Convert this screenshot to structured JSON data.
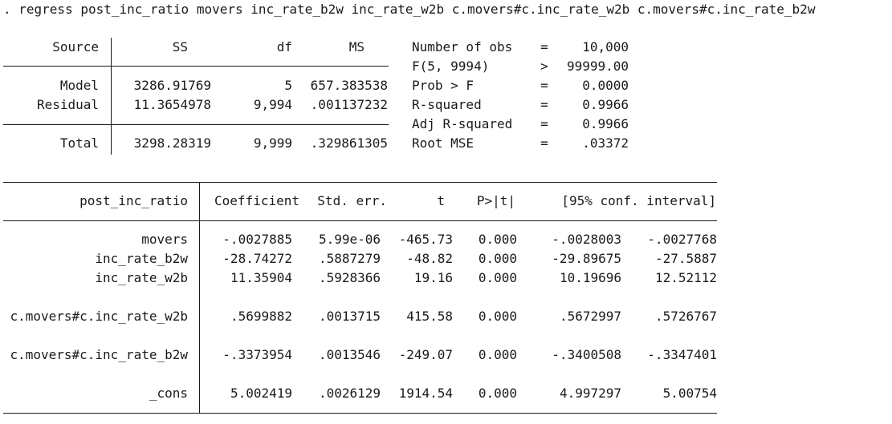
{
  "command": ". regress post_inc_ratio movers inc_rate_b2w inc_rate_w2b c.movers#c.inc_rate_w2b c.movers#c.inc_rate_b2w",
  "anova": {
    "headers": {
      "source": "Source",
      "ss": "SS",
      "df": "df",
      "ms": "MS"
    },
    "rows": [
      {
        "source": "Model",
        "ss": "3286.91769",
        "df": "5",
        "ms": "657.383538"
      },
      {
        "source": "Residual",
        "ss": "11.3654978",
        "df": "9,994",
        "ms": ".001137232"
      },
      {
        "source": "Total",
        "ss": "3298.28319",
        "df": "9,999",
        "ms": ".329861305"
      }
    ]
  },
  "stats": [
    {
      "label": "Number of obs",
      "op": "=",
      "value": "10,000"
    },
    {
      "label": "F(5, 9994)",
      "op": ">",
      "value": "99999.00"
    },
    {
      "label": "Prob > F",
      "op": "=",
      "value": "0.0000"
    },
    {
      "label": "R-squared",
      "op": "=",
      "value": "0.9966"
    },
    {
      "label": "Adj R-squared",
      "op": "=",
      "value": "0.9966"
    },
    {
      "label": "Root MSE",
      "op": "=",
      "value": ".03372"
    }
  ],
  "coef": {
    "headers": {
      "var": "post_inc_ratio",
      "coef": "Coefficient",
      "se": "Std. err.",
      "t": "t",
      "p": "P>|t|",
      "ci": "[95% conf. interval]"
    },
    "rows": [
      {
        "var": "movers",
        "coef": "-.0027885",
        "se": "5.99e-06",
        "t": "-465.73",
        "p": "0.000",
        "lo": "-.0028003",
        "hi": "-.0027768"
      },
      {
        "var": "inc_rate_b2w",
        "coef": "-28.74272",
        "se": ".5887279",
        "t": "-48.82",
        "p": "0.000",
        "lo": "-29.89675",
        "hi": "-27.5887"
      },
      {
        "var": "inc_rate_w2b",
        "coef": "11.35904",
        "se": ".5928366",
        "t": "19.16",
        "p": "0.000",
        "lo": "10.19696",
        "hi": "12.52112"
      },
      {
        "var": "c.movers#c.inc_rate_w2b",
        "coef": ".5699882",
        "se": ".0013715",
        "t": "415.58",
        "p": "0.000",
        "lo": ".5672997",
        "hi": ".5726767"
      },
      {
        "var": "c.movers#c.inc_rate_b2w",
        "coef": "-.3373954",
        "se": ".0013546",
        "t": "-249.07",
        "p": "0.000",
        "lo": "-.3400508",
        "hi": "-.3347401"
      },
      {
        "var": "_cons",
        "coef": "5.002419",
        "se": ".0026129",
        "t": "1914.54",
        "p": "0.000",
        "lo": "4.997297",
        "hi": "5.00754"
      }
    ]
  }
}
